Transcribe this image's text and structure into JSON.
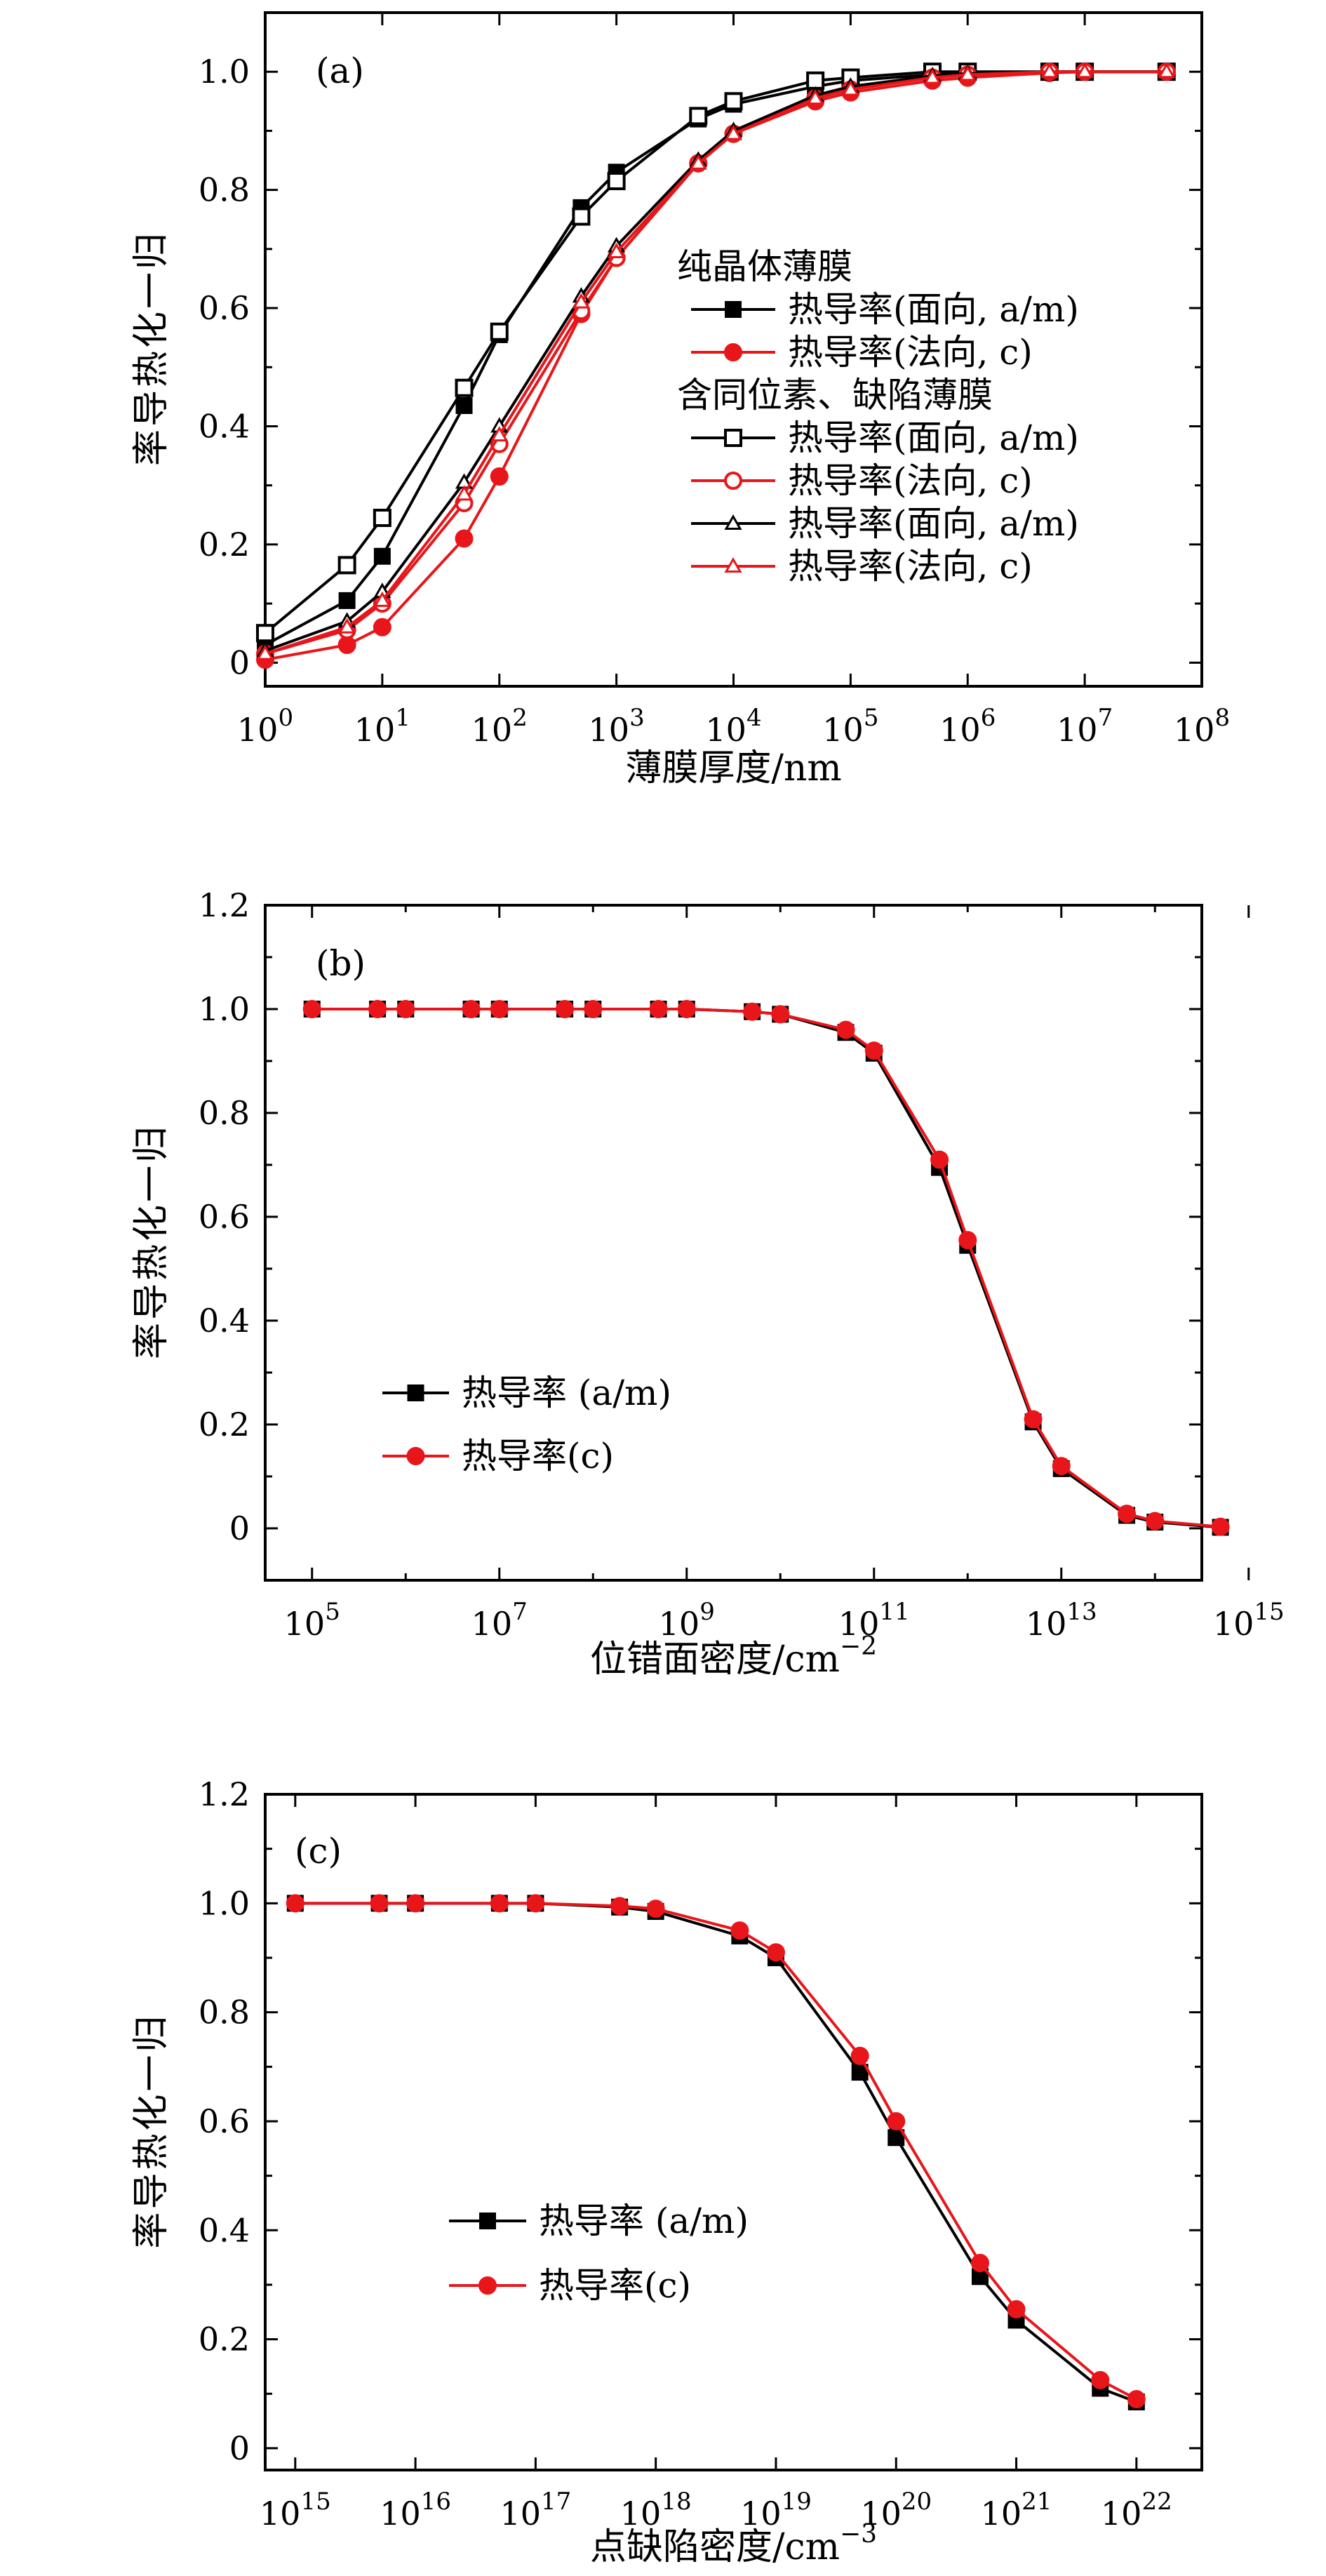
{
  "chart_data": [
    {
      "type": "line",
      "panel_label": "(a)",
      "xlabel": "薄膜厚度/nm",
      "ylabel": "归一化热导率",
      "x_scale": "log",
      "xlim": [
        1,
        100000000
      ],
      "ylim": [
        -0.04,
        1.1
      ],
      "x_ticks": [
        1,
        10,
        100,
        1000,
        10000,
        100000,
        1000000,
        10000000,
        100000000
      ],
      "x_tick_labels": [
        "10^0",
        "10^1",
        "10^2",
        "10^3",
        "10^4",
        "10^5",
        "10^6",
        "10^7",
        "10^8"
      ],
      "y_ticks": [
        0,
        0.2,
        0.4,
        0.6,
        0.8,
        1.0
      ],
      "y_tick_labels": [
        "0",
        "0.2",
        "0.4",
        "0.6",
        "0.8",
        "1.0"
      ],
      "legend_position": "center-right",
      "legend_groups": [
        {
          "heading": "纯晶体薄膜",
          "series_indices": [
            0,
            1
          ]
        },
        {
          "heading": "含同位素、缺陷薄膜",
          "series_indices": [
            2,
            3,
            4,
            5
          ]
        }
      ],
      "series": [
        {
          "name": "热导率(面向, a/m)",
          "color": "#000000",
          "marker": "filled-square",
          "x": [
            1,
            5,
            10,
            50,
            100,
            500,
            1000,
            5000,
            10000,
            50000,
            100000,
            500000,
            1000000,
            5000000,
            10000000,
            50000000
          ],
          "y": [
            0.03,
            0.105,
            0.18,
            0.435,
            0.555,
            0.77,
            0.83,
            0.92,
            0.945,
            0.975,
            0.985,
            0.995,
            0.998,
            1.0,
            1.0,
            1.0
          ]
        },
        {
          "name": "热导率(法向, c)",
          "color": "#e8161a",
          "marker": "filled-circle",
          "x": [
            1,
            5,
            10,
            50,
            100,
            500,
            1000,
            5000,
            10000,
            50000,
            100000,
            500000,
            1000000,
            5000000,
            10000000,
            50000000
          ],
          "y": [
            0.005,
            0.03,
            0.06,
            0.21,
            0.315,
            0.59,
            0.685,
            0.845,
            0.895,
            0.95,
            0.965,
            0.985,
            0.99,
            0.998,
            1.0,
            1.0
          ]
        },
        {
          "name": "热导率(面向, a/m)",
          "color": "#000000",
          "marker": "open-square",
          "x": [
            1,
            5,
            10,
            50,
            100,
            500,
            1000,
            5000,
            10000,
            50000,
            100000,
            500000,
            1000000,
            5000000,
            10000000,
            50000000
          ],
          "y": [
            0.05,
            0.165,
            0.245,
            0.465,
            0.56,
            0.755,
            0.815,
            0.925,
            0.95,
            0.985,
            0.99,
            1.0,
            1.0,
            1.0,
            1.0,
            1.0
          ]
        },
        {
          "name": "热导率(法向, c)",
          "color": "#e8161a",
          "marker": "open-circle",
          "x": [
            1,
            5,
            10,
            50,
            100,
            500,
            1000,
            5000,
            10000,
            50000,
            100000,
            500000,
            1000000,
            5000000,
            10000000,
            50000000
          ],
          "y": [
            0.015,
            0.055,
            0.1,
            0.27,
            0.37,
            0.595,
            0.685,
            0.845,
            0.895,
            0.955,
            0.97,
            0.99,
            0.995,
            1.0,
            1.0,
            1.0
          ]
        },
        {
          "name": "热导率(面向, a/m)",
          "color": "#000000",
          "marker": "open-triangle",
          "x": [
            1,
            5,
            10,
            50,
            100,
            500,
            1000,
            5000,
            10000,
            50000,
            100000,
            500000,
            1000000,
            5000000,
            10000000,
            50000000
          ],
          "y": [
            0.02,
            0.07,
            0.12,
            0.305,
            0.4,
            0.62,
            0.705,
            0.85,
            0.9,
            0.96,
            0.975,
            0.993,
            0.997,
            1.0,
            1.0,
            1.0
          ]
        },
        {
          "name": "热导率(法向, c)",
          "color": "#e8161a",
          "marker": "open-triangle",
          "x": [
            1,
            5,
            10,
            50,
            100,
            500,
            1000,
            5000,
            10000,
            50000,
            100000,
            500000,
            1000000,
            5000000,
            10000000,
            50000000
          ],
          "y": [
            0.015,
            0.06,
            0.105,
            0.285,
            0.385,
            0.61,
            0.695,
            0.845,
            0.895,
            0.955,
            0.97,
            0.99,
            0.995,
            1.0,
            1.0,
            1.0
          ]
        }
      ]
    },
    {
      "type": "line",
      "panel_label": "(b)",
      "xlabel": "位错面密度/cm",
      "xlabel_superscript": "−2",
      "ylabel": "归一化热导率",
      "x_scale": "log",
      "xlim": [
        31622.7766,
        316227766016838
      ],
      "ylim": [
        -0.1,
        1.2
      ],
      "x_ticks": [
        100000,
        10000000,
        1000000000,
        100000000000,
        10000000000000,
        1000000000000000
      ],
      "x_tick_labels": [
        "10^5",
        "10^7",
        "10^9",
        "10^11",
        "10^13",
        "10^15"
      ],
      "y_ticks": [
        0,
        0.2,
        0.4,
        0.6,
        0.8,
        1.0,
        1.2
      ],
      "y_tick_labels": [
        "0",
        "0.2",
        "0.4",
        "0.6",
        "0.8",
        "1.0",
        "1.2"
      ],
      "legend_position": "lower-left",
      "series": [
        {
          "name": "热导率 (a/m)",
          "color": "#000000",
          "marker": "filled-square",
          "x": [
            100000,
            500000,
            1000000,
            5000000,
            10000000,
            50000000,
            100000000,
            500000000,
            1000000000,
            5000000000,
            10000000000,
            50000000000,
            100000000000,
            500000000000,
            1000000000000,
            5000000000000,
            10000000000000,
            50000000000000,
            100000000000000,
            500000000000000
          ],
          "y": [
            1.0,
            1.0,
            1.0,
            1.0,
            1.0,
            1.0,
            1.0,
            1.0,
            1.0,
            0.995,
            0.99,
            0.955,
            0.915,
            0.695,
            0.545,
            0.205,
            0.115,
            0.025,
            0.012,
            0.002
          ]
        },
        {
          "name": "热导率(c)",
          "color": "#e8161a",
          "marker": "filled-circle",
          "x": [
            100000,
            500000,
            1000000,
            5000000,
            10000000,
            50000000,
            100000000,
            500000000,
            1000000000,
            5000000000,
            10000000000,
            50000000000,
            100000000000,
            500000000000,
            1000000000000,
            5000000000000,
            10000000000000,
            50000000000000,
            100000000000000,
            500000000000000
          ],
          "y": [
            1.0,
            1.0,
            1.0,
            1.0,
            1.0,
            1.0,
            1.0,
            1.0,
            1.0,
            0.995,
            0.99,
            0.96,
            0.92,
            0.71,
            0.555,
            0.21,
            0.12,
            0.028,
            0.014,
            0.003
          ]
        }
      ]
    },
    {
      "type": "line",
      "panel_label": "(c)",
      "xlabel": "点缺陷密度/cm",
      "xlabel_superscript": "−3",
      "ylabel": "归一化热导率",
      "x_scale": "log",
      "xlim": [
        562341325190349,
        3.5e+22
      ],
      "ylim": [
        -0.04,
        1.2
      ],
      "x_ticks": [
        1000000000000000.0,
        1e+16,
        1e+17,
        1e+18,
        1e+19,
        1e+20,
        1e+21,
        1e+22
      ],
      "x_tick_labels": [
        "10^15",
        "10^16",
        "10^17",
        "10^18",
        "10^19",
        "10^20",
        "10^21",
        "10^22"
      ],
      "y_ticks": [
        0,
        0.2,
        0.4,
        0.6,
        0.8,
        1.0,
        1.2
      ],
      "y_tick_labels": [
        "0",
        "0.2",
        "0.4",
        "0.6",
        "0.8",
        "1.0",
        "1.2"
      ],
      "legend_position": "lower-left",
      "series": [
        {
          "name": "热导率 (a/m)",
          "color": "#000000",
          "marker": "filled-square",
          "x": [
            1000000000000000.0,
            5000000000000000.0,
            1e+16,
            5e+16,
            1e+17,
            5e+17,
            1e+18,
            5e+18,
            1e+19,
            5e+19,
            1e+20,
            5e+20,
            1e+21,
            5e+21,
            1e+22
          ],
          "y": [
            1.0,
            1.0,
            1.0,
            1.0,
            1.0,
            0.993,
            0.985,
            0.94,
            0.9,
            0.69,
            0.57,
            0.315,
            0.235,
            0.11,
            0.085
          ]
        },
        {
          "name": "热导率(c)",
          "color": "#e8161a",
          "marker": "filled-circle",
          "x": [
            1000000000000000.0,
            5000000000000000.0,
            1e+16,
            5e+16,
            1e+17,
            5e+17,
            1e+18,
            5e+18,
            1e+19,
            5e+19,
            1e+20,
            5e+20,
            1e+21,
            5e+21,
            1e+22
          ],
          "y": [
            1.0,
            1.0,
            1.0,
            1.0,
            1.0,
            0.995,
            0.99,
            0.95,
            0.91,
            0.72,
            0.6,
            0.34,
            0.255,
            0.125,
            0.09
          ]
        }
      ]
    }
  ]
}
